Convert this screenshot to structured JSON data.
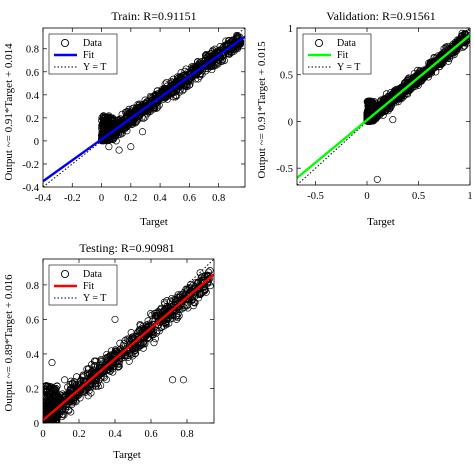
{
  "chart_data": [
    {
      "type": "scatter",
      "title": "Train: R=0.91151",
      "xlabel": "Target",
      "ylabel": "Output ~= 0.91*Target + 0.014",
      "xlim": [
        -0.4,
        0.98
      ],
      "ylim": [
        -0.4,
        0.98
      ],
      "xticks": [
        -0.4,
        -0.2,
        0,
        0.2,
        0.4,
        0.6,
        0.8
      ],
      "xtick_labels": [
        "-0.4",
        "-0.2",
        "0",
        "0.2",
        "0.4",
        "0.6",
        "0.8"
      ],
      "yticks": [
        -0.4,
        -0.2,
        0,
        0.2,
        0.4,
        0.6,
        0.8
      ],
      "ytick_labels": [
        "-0.4",
        "-0.2",
        "0",
        "0.2",
        "0.4",
        "0.6",
        "0.8"
      ],
      "fit": {
        "slope": 0.91,
        "intercept": 0.014,
        "color": "#0000ff"
      },
      "legend": [
        "Data",
        "Fit",
        "Y = T"
      ],
      "legend_position": "top-left",
      "data_extent": {
        "x": [
          0.0,
          0.95
        ],
        "y": [
          0.0,
          0.92
        ]
      },
      "outliers": [
        [
          0.1,
          0.0
        ],
        [
          0.05,
          -0.05
        ],
        [
          0.12,
          -0.08
        ],
        [
          0.2,
          -0.05
        ],
        [
          0.28,
          0.08
        ]
      ],
      "seed": 11
    },
    {
      "type": "scatter",
      "title": "Validation: R=0.91561",
      "xlabel": "Target",
      "ylabel": "Output ~= 0.91*Target + 0.015",
      "xlim": [
        -0.68,
        1.0
      ],
      "ylim": [
        -0.68,
        1.0
      ],
      "xticks": [
        -0.5,
        0,
        0.5,
        1
      ],
      "xtick_labels": [
        "-0.5",
        "0",
        "0.5",
        "1"
      ],
      "yticks": [
        -0.5,
        0,
        0.5,
        1
      ],
      "ytick_labels": [
        "-0.5",
        "0",
        "0.5",
        "1"
      ],
      "fit": {
        "slope": 0.91,
        "intercept": 0.015,
        "color": "#00ff00"
      },
      "legend": [
        "Data",
        "Fit",
        "Y = T"
      ],
      "legend_position": "top-left",
      "data_extent": {
        "x": [
          0.0,
          0.98
        ],
        "y": [
          0.0,
          0.95
        ]
      },
      "outliers": [
        [
          0.1,
          -0.62
        ],
        [
          0.25,
          0.02
        ],
        [
          0.05,
          0.05
        ]
      ],
      "seed": 23
    },
    {
      "type": "scatter",
      "title": "Testing: R=0.90981",
      "xlabel": "Target",
      "ylabel": "Output ~= 0.89*Target + 0.016",
      "xlim": [
        0.0,
        0.95
      ],
      "ylim": [
        0.0,
        0.95
      ],
      "xticks": [
        0,
        0.2,
        0.4,
        0.6,
        0.8
      ],
      "xtick_labels": [
        "0",
        "0.2",
        "0.4",
        "0.6",
        "0.8"
      ],
      "yticks": [
        0,
        0.2,
        0.4,
        0.6,
        0.8
      ],
      "ytick_labels": [
        "0",
        "0.2",
        "0.4",
        "0.6",
        "0.8"
      ],
      "fit": {
        "slope": 0.89,
        "intercept": 0.016,
        "color": "#ff0000"
      },
      "legend": [
        "Data",
        "Fit",
        "Y = T"
      ],
      "legend_position": "top-left",
      "data_extent": {
        "x": [
          0.0,
          0.93
        ],
        "y": [
          0.0,
          0.92
        ]
      },
      "outliers": [
        [
          0.72,
          0.25
        ],
        [
          0.78,
          0.25
        ],
        [
          0.4,
          0.6
        ],
        [
          0.05,
          0.35
        ],
        [
          0.12,
          0.25
        ]
      ],
      "seed": 37
    }
  ]
}
